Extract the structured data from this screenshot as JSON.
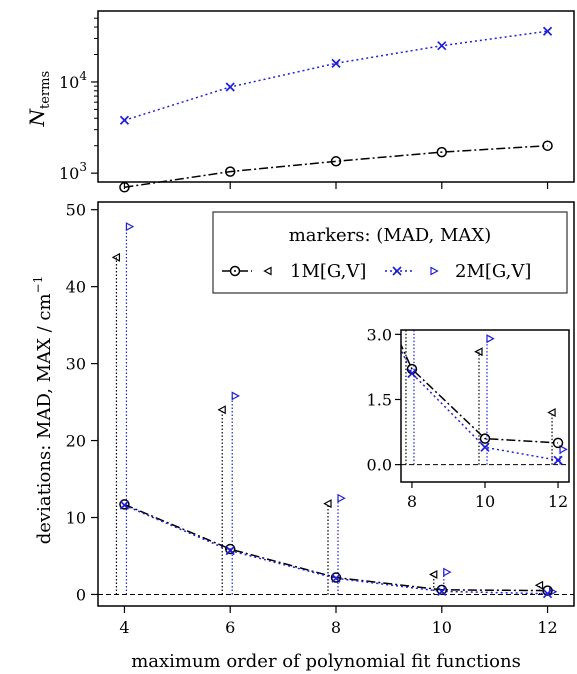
{
  "colors": {
    "series_1M": "#000000",
    "series_2M": "#1f1fd6",
    "axis": "#000000",
    "background": "#ffffff"
  },
  "chart_data": [
    {
      "type": "line",
      "panel": "top",
      "yscale": "log",
      "xlim": [
        3.5,
        12.5
      ],
      "ylim": [
        800,
        60000
      ],
      "ylabel": "N_terms",
      "ytick_labels": [
        "10^3",
        "10^4"
      ],
      "series": [
        {
          "name": "1M[G,V]",
          "marker": "o",
          "linestyle": "dash-dot",
          "x": [
            4,
            6,
            8,
            10,
            12
          ],
          "values": [
            700,
            1040,
            1350,
            1700,
            2000
          ]
        },
        {
          "name": "2M[G,V]",
          "marker": "x",
          "linestyle": "dotted",
          "x": [
            4,
            6,
            8,
            10,
            12
          ],
          "values": [
            3800,
            8800,
            16000,
            25000,
            36000
          ]
        }
      ]
    },
    {
      "type": "line",
      "panel": "main",
      "xlim": [
        3.5,
        12.5
      ],
      "ylim": [
        -1.5,
        51
      ],
      "xticks": [
        4,
        6,
        8,
        10,
        12
      ],
      "yticks": [
        0,
        10,
        20,
        30,
        40,
        50
      ],
      "xlabel": "maximum order of polynomial fit functions",
      "ylabel": "deviations: MAD, MAX / cm^-1",
      "legend": {
        "title": "markers: (MAD, MAX)",
        "placement": "top-right",
        "entries": [
          "1M[G,V]",
          "2M[G,V]"
        ]
      },
      "series": [
        {
          "name": "1M[G,V]",
          "x": [
            4,
            6,
            8,
            10,
            12
          ],
          "mad": [
            11.7,
            5.9,
            2.2,
            0.6,
            0.5
          ],
          "max": [
            43.8,
            24.0,
            11.8,
            2.6,
            1.2
          ]
        },
        {
          "name": "2M[G,V]",
          "x": [
            4,
            6,
            8,
            10,
            12
          ],
          "mad": [
            11.6,
            5.7,
            2.1,
            0.4,
            0.1
          ],
          "max": [
            47.8,
            25.8,
            12.5,
            2.9,
            0.35
          ]
        }
      ],
      "reference_line": 0
    },
    {
      "type": "line",
      "panel": "inset",
      "xlim": [
        7.7,
        12.3
      ],
      "ylim": [
        -0.4,
        3.1
      ],
      "xticks": [
        8,
        10,
        12
      ],
      "yticks": [
        0.0,
        1.5,
        3.0
      ],
      "ytick_labels": [
        "0.0",
        "1.5",
        "3.0"
      ]
    }
  ]
}
